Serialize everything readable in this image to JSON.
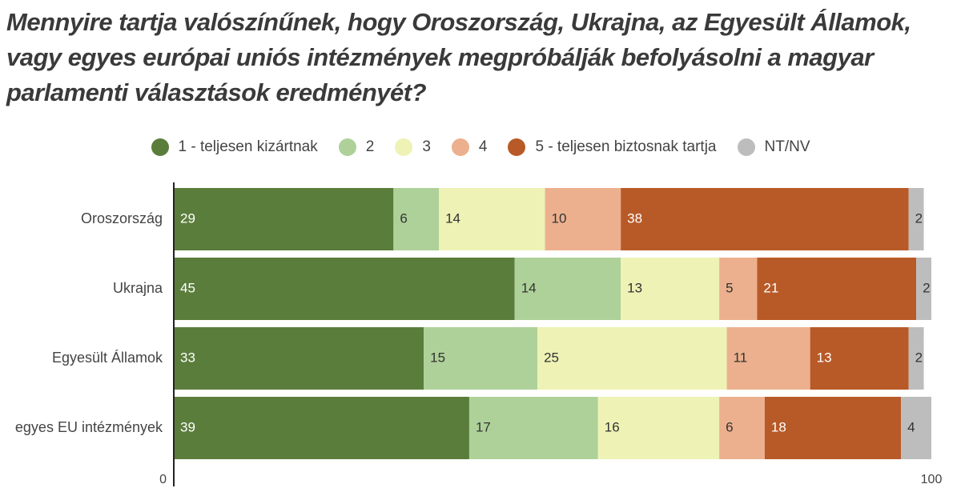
{
  "chart_data": {
    "type": "bar",
    "orientation": "horizontal",
    "stacked": true,
    "title": "Mennyire tartja valószínűnek, hogy Oroszország, Ukrajna, az Egyesült Államok, vagy egyes európai uniós intézmények megpróbálják befolyásolni a magyar parlamenti választások eredményét?",
    "categories": [
      "Oroszország",
      "Ukrajna",
      "Egyesült Államok",
      "egyes EU intézmények"
    ],
    "series": [
      {
        "name": "1 - teljesen kizártnak",
        "color": "#5b7d3c",
        "label_color": "#ffffff",
        "values": [
          29,
          45,
          33,
          39
        ]
      },
      {
        "name": "2",
        "color": "#aed199",
        "label_color": "#333333",
        "values": [
          6,
          14,
          15,
          17
        ]
      },
      {
        "name": "3",
        "color": "#eef2b5",
        "label_color": "#333333",
        "values": [
          14,
          13,
          25,
          16
        ]
      },
      {
        "name": "4",
        "color": "#ecb08e",
        "label_color": "#333333",
        "values": [
          10,
          5,
          11,
          6
        ]
      },
      {
        "name": "5 - teljesen biztosnak tartja",
        "color": "#b85a27",
        "label_color": "#ffffff",
        "values": [
          38,
          21,
          13,
          18
        ]
      },
      {
        "name": "NT/NV",
        "color": "#bdbdbd",
        "label_color": "#333333",
        "values": [
          2,
          2,
          2,
          4
        ]
      }
    ],
    "xlim": [
      0,
      100
    ],
    "x_ticks": [
      "0",
      "100"
    ],
    "legend_position": "top",
    "grid": false
  }
}
